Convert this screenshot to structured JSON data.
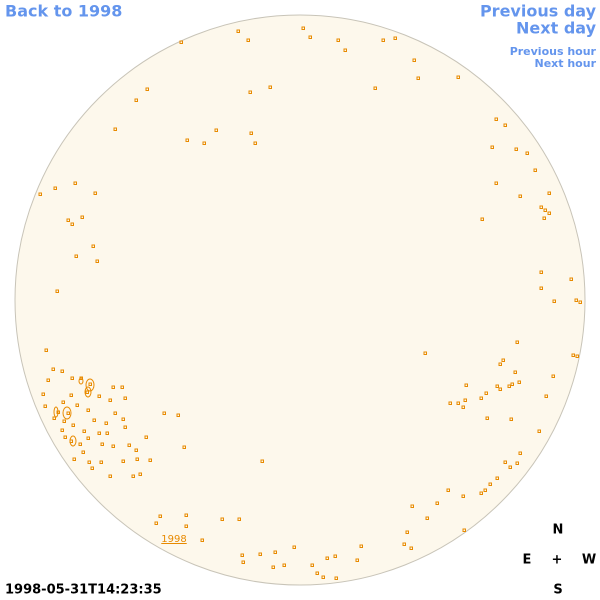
{
  "navigation": {
    "back": "Back to 1998",
    "previous_day": "Previous day",
    "next_day": "Next day",
    "previous_hour": "Previous hour",
    "next_hour": "Next hour"
  },
  "map": {
    "label": "1998"
  },
  "timestamp": "1998-05-31T14:23:35",
  "compass": {
    "north": "N",
    "east": "E",
    "center": "+",
    "west": "W",
    "south": "S"
  }
}
